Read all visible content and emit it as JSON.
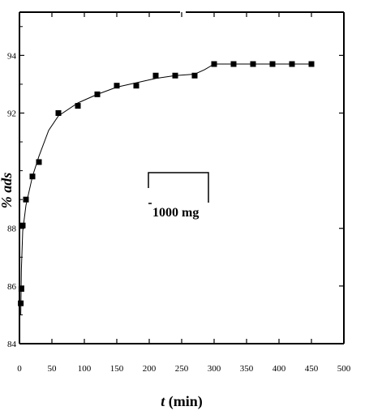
{
  "chart_data": {
    "type": "scatter",
    "xlabel": {
      "var": "t",
      "unit": " (min)"
    },
    "ylabel": "% ads",
    "xlim": [
      0,
      500
    ],
    "ylim": [
      84,
      95.5
    ],
    "x_ticks": [
      0,
      50,
      100,
      150,
      200,
      250,
      300,
      350,
      400,
      450,
      500
    ],
    "y_ticks": [
      84,
      86,
      88,
      92,
      94
    ],
    "grid": false,
    "legend": {
      "label": "1000 mg",
      "placement": "center"
    },
    "series": [
      {
        "marker": "square",
        "color": "#000000",
        "points": [
          [
            2,
            85.4
          ],
          [
            3,
            85.9
          ],
          [
            5,
            88.1
          ],
          [
            10,
            89.0
          ],
          [
            20,
            89.8
          ],
          [
            30,
            90.3
          ],
          [
            60,
            92.0
          ],
          [
            90,
            92.25
          ],
          [
            120,
            92.65
          ],
          [
            150,
            92.95
          ],
          [
            180,
            92.95
          ],
          [
            210,
            93.3
          ],
          [
            240,
            93.3
          ],
          [
            270,
            93.3
          ],
          [
            300,
            93.7
          ],
          [
            330,
            93.7
          ],
          [
            360,
            93.7
          ],
          [
            390,
            93.7
          ],
          [
            420,
            93.7
          ],
          [
            450,
            93.7
          ]
        ]
      }
    ],
    "fit_line": [
      [
        2,
        85.0
      ],
      [
        3,
        86.6
      ],
      [
        5,
        87.9
      ],
      [
        10,
        88.8
      ],
      [
        20,
        89.8
      ],
      [
        30,
        90.5
      ],
      [
        45,
        91.4
      ],
      [
        60,
        91.9
      ],
      [
        90,
        92.35
      ],
      [
        120,
        92.65
      ],
      [
        150,
        92.9
      ],
      [
        180,
        93.05
      ],
      [
        210,
        93.2
      ],
      [
        240,
        93.3
      ],
      [
        270,
        93.35
      ],
      [
        285,
        93.5
      ],
      [
        300,
        93.7
      ],
      [
        330,
        93.7
      ],
      [
        360,
        93.7
      ],
      [
        390,
        93.7
      ],
      [
        420,
        93.7
      ],
      [
        450,
        93.7
      ]
    ]
  }
}
